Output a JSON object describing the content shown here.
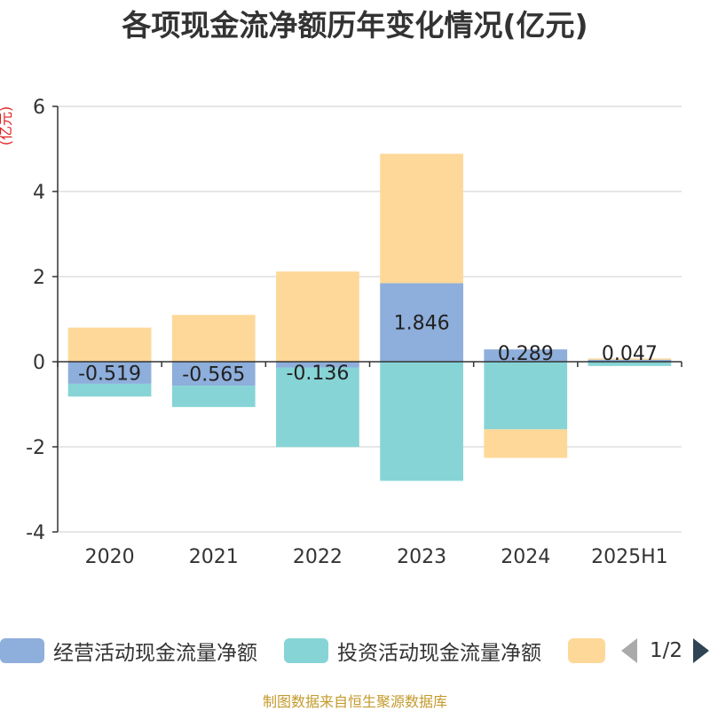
{
  "header": {
    "title": "各项现金流净额历年变化情况(亿元)"
  },
  "source_note": "制图数据来自恒生聚源数据库",
  "legend": {
    "items": [
      {
        "label": "经营活动现金流量净额",
        "color": "#8eaedb"
      },
      {
        "label": "投资活动现金流量净额",
        "color": "#87d4d6"
      },
      {
        "label": "",
        "color": "#fdd898"
      }
    ],
    "pager": "1/2"
  },
  "chart_data": {
    "type": "bar",
    "stacked": true,
    "ylabel": "(亿元)",
    "categories": [
      "2020",
      "2021",
      "2022",
      "2023",
      "2024",
      "2025H1"
    ],
    "ylim": [
      -4,
      6
    ],
    "yticks": [
      -4,
      -2,
      0,
      2,
      4,
      6
    ],
    "grid": true,
    "legend_position": "bottom",
    "series": [
      {
        "name": "经营活动现金流量净额",
        "color": "#8eaedb",
        "values": [
          -0.519,
          -0.565,
          -0.136,
          1.846,
          0.289,
          0.047
        ],
        "labels": [
          "-0.519",
          "-0.565",
          "-0.136",
          "1.846",
          "0.289",
          "0.047"
        ]
      },
      {
        "name": "投资活动现金流量净额",
        "color": "#87d4d6",
        "values": [
          -0.3,
          -0.5,
          -1.87,
          -2.8,
          -1.59,
          -0.1
        ]
      },
      {
        "color": "#fdd898",
        "values": [
          0.8,
          1.1,
          2.12,
          3.04,
          -0.67,
          0.03
        ]
      }
    ]
  }
}
